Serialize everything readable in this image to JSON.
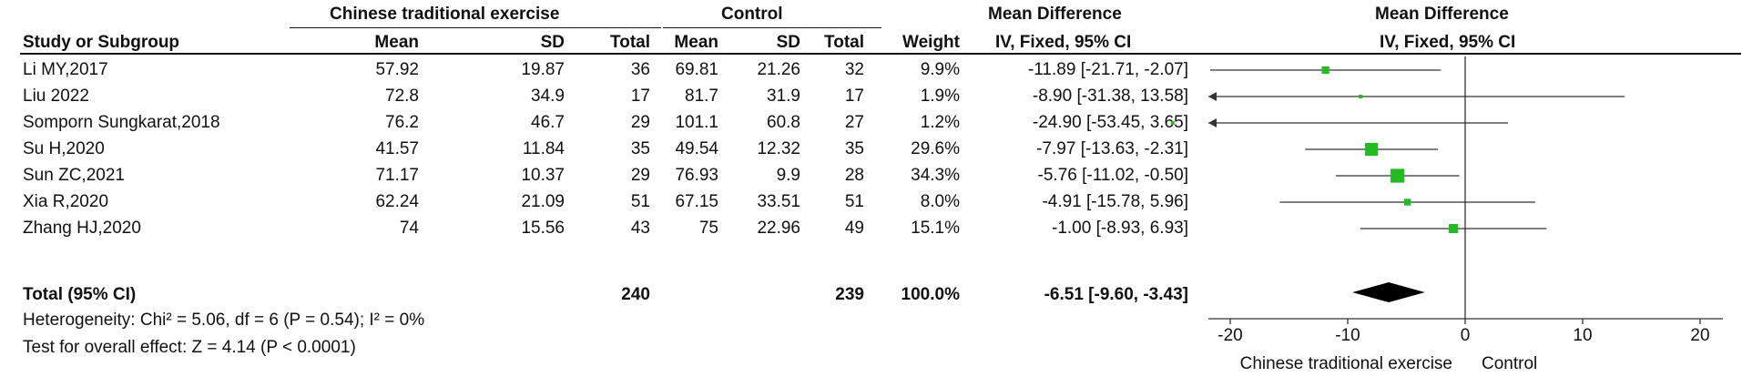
{
  "header": {
    "group1": "Chinese traditional exercise",
    "group2": "Control",
    "col_effect": "Mean Difference",
    "col_plot": "Mean Difference",
    "col_study": "Study or Subgroup",
    "col_mean1": "Mean",
    "col_sd1": "SD",
    "col_total1": "Total",
    "col_mean2": "Mean",
    "col_sd2": "SD",
    "col_total2": "Total",
    "col_weight": "Weight",
    "col_ci": "IV, Fixed, 95% CI",
    "col_plot_ci": "IV, Fixed, 95% CI"
  },
  "studies": [
    {
      "name": "Li MY,2017",
      "mean1": "57.92",
      "sd1": "19.87",
      "total1": "36",
      "mean2": "69.81",
      "sd2": "21.26",
      "total2": "32",
      "weight": "9.9%",
      "ci_text": "-11.89 [-21.71, -2.07]"
    },
    {
      "name": "Liu 2022",
      "mean1": "72.8",
      "sd1": "34.9",
      "total1": "17",
      "mean2": "81.7",
      "sd2": "31.9",
      "total2": "17",
      "weight": "1.9%",
      "ci_text": "-8.90 [-31.38, 13.58]"
    },
    {
      "name": "Somporn Sungkarat,2018",
      "mean1": "76.2",
      "sd1": "46.7",
      "total1": "29",
      "mean2": "101.1",
      "sd2": "60.8",
      "total2": "27",
      "weight": "1.2%",
      "ci_text": "-24.90 [-53.45, 3.65]"
    },
    {
      "name": "Su H,2020",
      "mean1": "41.57",
      "sd1": "11.84",
      "total1": "35",
      "mean2": "49.54",
      "sd2": "12.32",
      "total2": "35",
      "weight": "29.6%",
      "ci_text": "-7.97 [-13.63, -2.31]"
    },
    {
      "name": "Sun ZC,2021",
      "mean1": "71.17",
      "sd1": "10.37",
      "total1": "29",
      "mean2": "76.93",
      "sd2": "9.9",
      "total2": "28",
      "weight": "34.3%",
      "ci_text": "-5.76 [-11.02, -0.50]"
    },
    {
      "name": "Xia R,2020",
      "mean1": "62.24",
      "sd1": "21.09",
      "total1": "51",
      "mean2": "67.15",
      "sd2": "33.51",
      "total2": "51",
      "weight": "8.0%",
      "ci_text": "-4.91 [-15.78, 5.96]"
    },
    {
      "name": "Zhang HJ,2020",
      "mean1": "74",
      "sd1": "15.56",
      "total1": "43",
      "mean2": "75",
      "sd2": "22.96",
      "total2": "49",
      "weight": "15.1%",
      "ci_text": "-1.00 [-8.93, 6.93]"
    }
  ],
  "total": {
    "label": "Total (95% CI)",
    "total1": "240",
    "total2": "239",
    "weight": "100.0%",
    "ci_text": "-6.51 [-9.60, -3.43]"
  },
  "heterogeneity": "Heterogeneity: Chi² = 5.06, df = 6 (P = 0.54); I² = 0%",
  "overall_effect": "Test for overall effect: Z = 4.14 (P < 0.0001)",
  "favours_left": "Chinese traditional exercise",
  "favours_right": "Control",
  "colors": {
    "marker": "#22bb22",
    "diamond": "#000000",
    "line": "#333333",
    "text": "#111111"
  },
  "chart_data": {
    "type": "forest",
    "xlim": [
      -20,
      20
    ],
    "xticks": [
      "-20",
      "-10",
      "0",
      "10",
      "20"
    ],
    "tick_values": [
      -20,
      -10,
      0,
      10,
      20
    ],
    "estimates": [
      {
        "study": "Li MY,2017",
        "md": -11.89,
        "lo": -21.71,
        "hi": -2.07,
        "weight": 9.9
      },
      {
        "study": "Liu 2022",
        "md": -8.9,
        "lo": -31.38,
        "hi": 13.58,
        "weight": 1.9
      },
      {
        "study": "Somporn Sungkarat,2018",
        "md": -24.9,
        "lo": -53.45,
        "hi": 3.65,
        "weight": 1.2
      },
      {
        "study": "Su H,2020",
        "md": -7.97,
        "lo": -13.63,
        "hi": -2.31,
        "weight": 29.6
      },
      {
        "study": "Sun ZC,2021",
        "md": -5.76,
        "lo": -11.02,
        "hi": -0.5,
        "weight": 34.3
      },
      {
        "study": "Xia R,2020",
        "md": -4.91,
        "lo": -15.78,
        "hi": 5.96,
        "weight": 8.0
      },
      {
        "study": "Zhang HJ,2020",
        "md": -1.0,
        "lo": -8.93,
        "hi": 6.93,
        "weight": 15.1
      }
    ],
    "pooled": {
      "md": -6.51,
      "lo": -9.6,
      "hi": -3.43
    }
  }
}
